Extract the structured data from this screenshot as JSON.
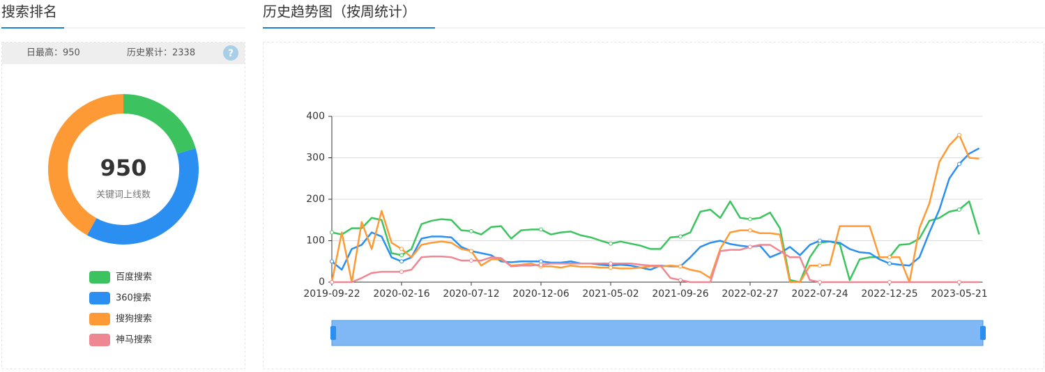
{
  "left_title": "搜索排名",
  "right_title": "历史趋势图（按周统计）",
  "stats": [
    "日最高：950",
    "历史累计：2338"
  ],
  "help_icon": "?",
  "chart_data": [
    {
      "type": "pie",
      "donut": true,
      "center_value": 950,
      "center_label": "关键词上线数",
      "categories": [
        "百度搜索",
        "360搜索",
        "搜狗搜索",
        "神马搜索"
      ],
      "values": [
        195,
        356,
        399,
        0
      ],
      "colors": [
        "#3cc35f",
        "#2a8ff0",
        "#fd9a36",
        "#ef8792"
      ]
    },
    {
      "type": "line",
      "x": [
        "2019-09-22",
        null,
        null,
        null,
        null,
        null,
        null,
        "2020-02-16",
        null,
        null,
        null,
        null,
        null,
        null,
        "2020-07-12",
        null,
        null,
        null,
        null,
        null,
        null,
        "2020-12-06",
        null,
        null,
        null,
        null,
        null,
        null,
        "2021-05-02",
        null,
        null,
        null,
        null,
        null,
        null,
        "2021-09-26",
        null,
        null,
        null,
        null,
        null,
        null,
        "2022-02-27",
        null,
        null,
        null,
        null,
        null,
        null,
        "2022-07-24",
        null,
        null,
        null,
        null,
        null,
        null,
        "2022-12-25",
        null,
        null,
        null,
        null,
        null,
        null,
        "2023-05-21",
        null,
        null
      ],
      "ylim": [
        0,
        400
      ],
      "yticks": [
        0,
        100,
        200,
        300,
        400
      ],
      "grid": true,
      "series": [
        {
          "color": "#3cc35f",
          "values": [
            120,
            115,
            130,
            130,
            155,
            150,
            70,
            65,
            80,
            140,
            148,
            152,
            150,
            125,
            123,
            115,
            133,
            135,
            105,
            125,
            127,
            127,
            115,
            120,
            122,
            113,
            108,
            100,
            93,
            98,
            93,
            88,
            80,
            80,
            108,
            110,
            120,
            170,
            175,
            155,
            195,
            155,
            152,
            155,
            168,
            130,
            5,
            0,
            60,
            95,
            98,
            92,
            5,
            55,
            60,
            60,
            60,
            90,
            92,
            105,
            148,
            155,
            170,
            175,
            195,
            115
          ]
        },
        {
          "color": "#2a8ff0",
          "values": [
            50,
            30,
            80,
            90,
            120,
            110,
            60,
            50,
            60,
            105,
            110,
            110,
            108,
            85,
            75,
            70,
            65,
            50,
            48,
            50,
            50,
            50,
            47,
            47,
            50,
            45,
            45,
            42,
            40,
            42,
            40,
            35,
            30,
            40,
            38,
            38,
            60,
            85,
            95,
            100,
            92,
            88,
            85,
            88,
            60,
            70,
            85,
            65,
            90,
            100,
            98,
            95,
            80,
            72,
            70,
            55,
            45,
            42,
            40,
            60,
            120,
            175,
            250,
            285,
            310,
            323
          ]
        },
        {
          "color": "#fd9a36",
          "values": [
            0,
            120,
            0,
            145,
            80,
            172,
            95,
            80,
            60,
            90,
            95,
            98,
            95,
            80,
            75,
            40,
            55,
            55,
            40,
            42,
            45,
            38,
            38,
            35,
            40,
            37,
            37,
            35,
            35,
            33,
            33,
            35,
            38,
            38,
            40,
            38,
            30,
            25,
            10,
            80,
            120,
            125,
            125,
            118,
            118,
            115,
            0,
            0,
            40,
            40,
            42,
            135,
            135,
            135,
            135,
            60,
            60,
            60,
            0,
            130,
            190,
            290,
            330,
            355,
            300,
            298
          ]
        },
        {
          "color": "#ef8792",
          "values": [
            0,
            0,
            0,
            10,
            22,
            25,
            25,
            25,
            30,
            60,
            62,
            62,
            60,
            52,
            52,
            52,
            60,
            58,
            38,
            40,
            40,
            42,
            45,
            45,
            45,
            45,
            45,
            45,
            45,
            45,
            45,
            42,
            40,
            40,
            10,
            5,
            0,
            0,
            0,
            75,
            78,
            78,
            85,
            90,
            90,
            75,
            60,
            60,
            5,
            0,
            0,
            0,
            0,
            0,
            0,
            0,
            0,
            0,
            0,
            0,
            0,
            0,
            0,
            0,
            0,
            0
          ]
        }
      ]
    }
  ]
}
